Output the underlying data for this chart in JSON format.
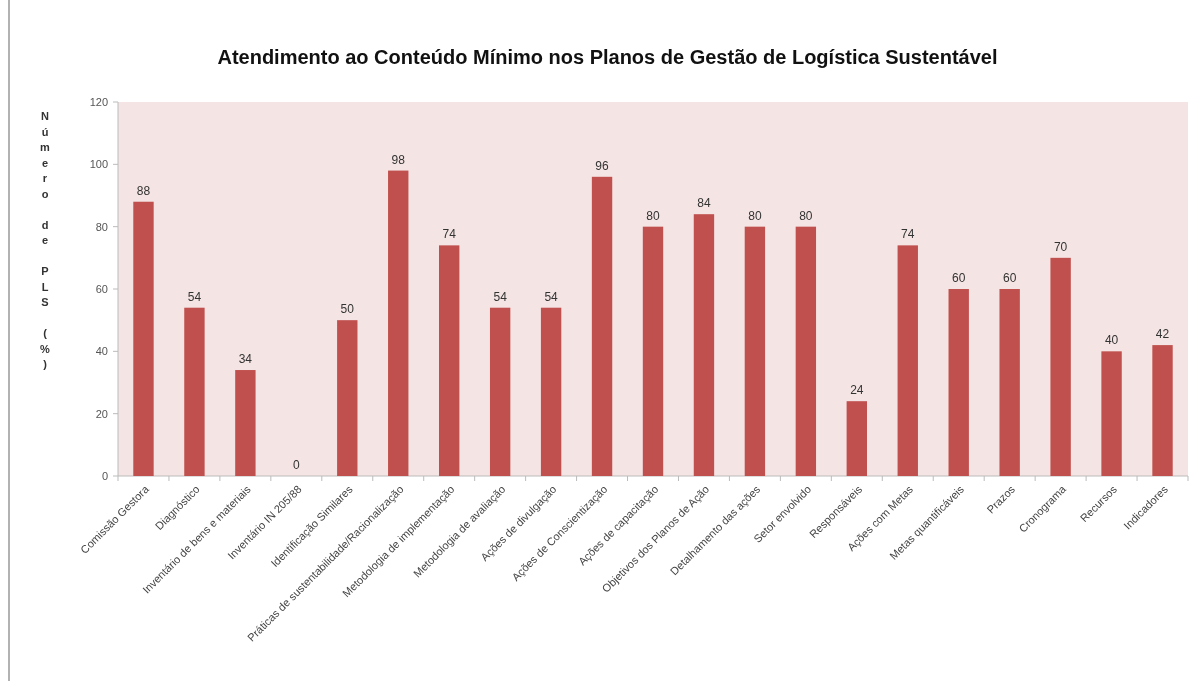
{
  "chart_data": {
    "type": "bar",
    "title": "Atendimento ao Conteúdo Mínimo nos Planos de Gestão de Logística Sustentável",
    "ylabel": "Número de PLS (%)",
    "categories": [
      "Comissão Gestora",
      "Diagnóstico",
      "Inventário de bens e materiais",
      "Inventário IN 205/88",
      "Identificação Similares",
      "Práticas de sustentabilidade/Racionalização",
      "Metodologia de implementação",
      "Metodologia de avaliação",
      "Ações de divulgação",
      "Ações de Conscientização",
      "Ações de capacitação",
      "Objetivos dos Planos de Ação",
      "Detalhamento das ações",
      "Setor envolvido",
      "Responsáveis",
      "Ações com Metas",
      "Metas quantificáveis",
      "Prazos",
      "Cronograma",
      "Recursos",
      "Indicadores"
    ],
    "values": [
      88,
      54,
      34,
      0,
      50,
      98,
      74,
      54,
      54,
      96,
      80,
      84,
      80,
      80,
      24,
      74,
      60,
      60,
      70,
      40,
      42
    ],
    "color": "#c0504d",
    "ylim": [
      0,
      120
    ],
    "yticks": [
      0,
      20,
      40,
      60,
      80,
      100,
      120
    ],
    "grid": false,
    "data_labels": true
  }
}
